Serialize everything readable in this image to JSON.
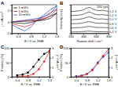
{
  "chart_data": [
    {
      "type": "line",
      "title": "A",
      "x_label": "E / V vs. RHE",
      "y_label": "j / mA cm⁻²",
      "x": [
        0.2,
        0.4,
        0.6,
        0.8,
        1.0,
        1.2,
        1.4,
        1.6,
        1.4,
        1.2,
        1.0,
        0.8,
        0.6,
        0.4,
        0.2
      ],
      "xlim": [
        0.2,
        1.6
      ],
      "xticks": [
        0.4,
        0.8,
        1.2,
        1.6
      ],
      "ylim": [
        -2,
        3
      ],
      "yticks": [
        -2,
        0,
        2
      ],
      "legend": "upper left",
      "series": [
        {
          "name": "1 mV/s",
          "color": "#000000",
          "values": [
            0,
            0.05,
            0.1,
            0.15,
            0.2,
            0.3,
            0.6,
            1.5,
            1.0,
            0.5,
            0.2,
            -0.1,
            -0.3,
            -0.2,
            -0.1
          ]
        },
        {
          "name": "5 mV/s",
          "color": "#e41a1c",
          "values": [
            0,
            0.1,
            0.2,
            0.3,
            0.4,
            0.6,
            1.0,
            2.2,
            1.6,
            0.9,
            0.3,
            -0.5,
            -0.9,
            -0.6,
            -0.3
          ]
        },
        {
          "name": "10 mV/s",
          "color": "#1f4fd8",
          "values": [
            0,
            0.15,
            0.3,
            0.45,
            0.6,
            0.9,
            1.4,
            2.8,
            2.1,
            1.2,
            0.4,
            -0.9,
            -1.6,
            -1.1,
            -0.5
          ]
        }
      ]
    },
    {
      "type": "line",
      "title": "B",
      "x_label": "Raman shift / cm⁻¹",
      "y_label": "Intensity (a.u.)",
      "annotation": "100 cps",
      "x": [
        200,
        250,
        300,
        350,
        400,
        450,
        500,
        550,
        600,
        650,
        700,
        750,
        800
      ],
      "xlim": [
        200,
        800
      ],
      "xticks": [
        200,
        400,
        600,
        800
      ],
      "ylim": [
        -0.5,
        10
      ],
      "tick_labels": "x",
      "series": [
        {
          "name": "0.4 V",
          "color": "#333333",
          "values": [
            0,
            0.02,
            0.03,
            0.06,
            0.12,
            0.24,
            0.3,
            0.18,
            0.09,
            0.06,
            0.09,
            0.05,
            0.02
          ]
        },
        {
          "name": "0.6 V",
          "color": "#333333",
          "values": [
            1.5,
            1.53,
            1.56,
            1.61,
            1.72,
            1.94,
            2.05,
            1.83,
            1.67,
            1.61,
            1.67,
            1.58,
            1.53
          ]
        },
        {
          "name": "0.8 V",
          "color": "#333333",
          "values": [
            3,
            3.04,
            3.08,
            3.16,
            3.32,
            3.64,
            3.8,
            3.48,
            3.24,
            3.16,
            3.24,
            3.12,
            3.04
          ]
        },
        {
          "name": "1.0 V",
          "color": "#333333",
          "values": [
            4.5,
            4.55,
            4.61,
            4.71,
            4.92,
            5.34,
            5.55,
            5.13,
            4.82,
            4.71,
            4.82,
            4.66,
            4.55
          ]
        },
        {
          "name": "1.2 V",
          "color": "#333333",
          "values": [
            6,
            6.07,
            6.13,
            6.26,
            6.52,
            7.04,
            7.3,
            6.78,
            6.39,
            6.26,
            6.39,
            6.2,
            6.07
          ]
        },
        {
          "name": "1.4 V",
          "color": "#333333",
          "values": [
            7.5,
            7.58,
            7.66,
            7.81,
            8.12,
            8.74,
            9.05,
            8.43,
            7.97,
            7.81,
            7.97,
            7.73,
            7.58
          ]
        }
      ]
    },
    {
      "type": "line",
      "title": "C",
      "x_label": "E / V vs. RHE",
      "y_label": "Fraction (%)",
      "y2_label": "j / mA cm⁻²",
      "x": [
        0.4,
        0.6,
        0.8,
        1.0,
        1.2,
        1.4,
        1.6
      ],
      "xlim": [
        0.2,
        1.6
      ],
      "xticks": [
        0.4,
        0.8,
        1.2,
        1.6
      ],
      "ylim": [
        0,
        100
      ],
      "yticks": [
        0,
        50,
        100
      ],
      "y2lim": [
        0,
        3
      ],
      "y2ticks": [
        0,
        1,
        2,
        3
      ],
      "series": [
        {
          "color": "#000000",
          "marker": "square",
          "values": [
            5,
            8,
            15,
            35,
            60,
            80,
            90
          ]
        },
        {
          "color": "#e41a1c",
          "marker": "circle",
          "axis": "y2",
          "values": [
            0,
            0.05,
            0.1,
            0.3,
            0.8,
            1.6,
            2.7
          ]
        }
      ]
    },
    {
      "type": "line",
      "title": "D",
      "x_label": "E / V vs. RHE",
      "y_label": "Fraction (%)",
      "y2_label": "j / mA cm⁻²",
      "x": [
        0.4,
        0.6,
        0.8,
        1.0,
        1.2,
        1.4,
        1.6
      ],
      "xlim": [
        0.2,
        1.6
      ],
      "xticks": [
        0.4,
        0.8,
        1.2,
        1.6
      ],
      "ylim": [
        0,
        100
      ],
      "yticks": [
        0,
        50,
        100
      ],
      "y2lim": [
        0,
        3
      ],
      "y2ticks": [
        0,
        1,
        2,
        3
      ],
      "series": [
        {
          "color": "#1f4fd8",
          "marker": "square",
          "values": [
            2,
            4,
            10,
            25,
            50,
            70,
            85
          ]
        },
        {
          "color": "#e41a1c",
          "marker": "circle",
          "axis": "y2",
          "values": [
            0,
            0.1,
            0.3,
            0.7,
            1.4,
            2.2,
            2.9
          ]
        }
      ]
    }
  ]
}
